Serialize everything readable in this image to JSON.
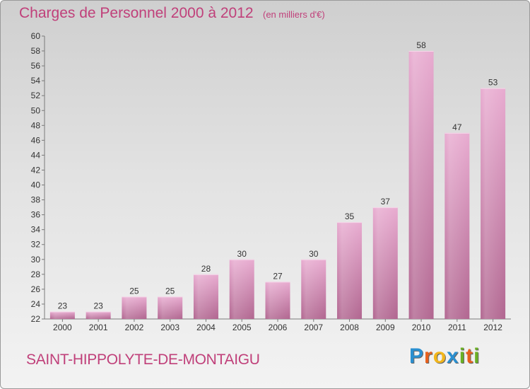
{
  "header": {
    "title": "Charges de Personnel 2000 à 2012",
    "subtitle": "(en milliers d'€)"
  },
  "footer": {
    "commune": "SAINT-HIPPOLYTE-DE-MONTAIGU",
    "brand": "Proxiti",
    "brand_letters": [
      {
        "char": "P",
        "color": "#2a8fd0"
      },
      {
        "char": "r",
        "color": "#e8601c"
      },
      {
        "char": "o",
        "color": "#f2b61c"
      },
      {
        "char": "x",
        "color": "#2a8fd0"
      },
      {
        "char": "i",
        "color": "#6ab023"
      },
      {
        "char": "t",
        "color": "#e8601c"
      },
      {
        "char": "i",
        "color": "#6ab023"
      }
    ]
  },
  "colors": {
    "accent": "#c0407a",
    "bar_light": "#e6a7cc",
    "bar_dark": "#b46a94"
  },
  "chart_data": {
    "type": "bar",
    "title": "Charges de Personnel 2000 à 2012",
    "categories": [
      "2000",
      "2001",
      "2002",
      "2003",
      "2004",
      "2005",
      "2006",
      "2007",
      "2008",
      "2009",
      "2010",
      "2011",
      "2012"
    ],
    "values": [
      23,
      23,
      25,
      25,
      28,
      30,
      27,
      30,
      35,
      37,
      58,
      47,
      53
    ],
    "ylim": [
      22,
      60
    ],
    "yticks": [
      22,
      24,
      26,
      28,
      30,
      32,
      34,
      36,
      38,
      40,
      42,
      44,
      46,
      48,
      50,
      52,
      54,
      56,
      58,
      60
    ],
    "grid": false,
    "legend": "none"
  }
}
